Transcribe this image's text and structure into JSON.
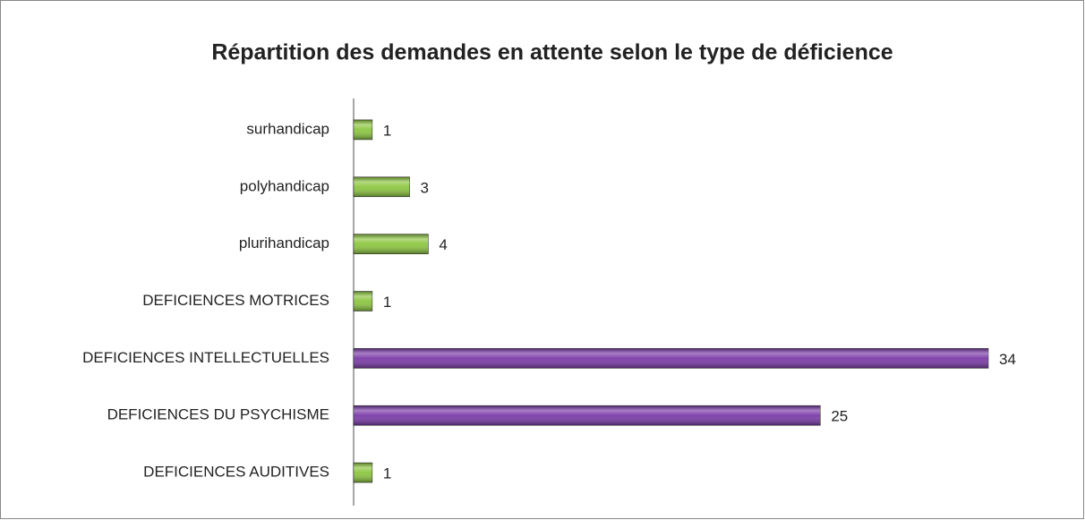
{
  "chart_data": {
    "type": "bar",
    "orientation": "horizontal",
    "title": "Répartition des demandes en attente selon le type de déficience",
    "categories": [
      "surhandicap",
      "polyhandicap",
      "plurihandicap",
      "DEFICIENCES MOTRICES",
      "DEFICIENCES INTELLECTUELLES",
      "DEFICIENCES DU PSYCHISME",
      "DEFICIENCES AUDITIVES"
    ],
    "values": [
      1,
      3,
      4,
      1,
      34,
      25,
      1
    ],
    "colors": [
      "#8cc63f",
      "#8cc63f",
      "#8cc63f",
      "#8cc63f",
      "#7a3aa8",
      "#7a3aa8",
      "#8cc63f"
    ]
  }
}
